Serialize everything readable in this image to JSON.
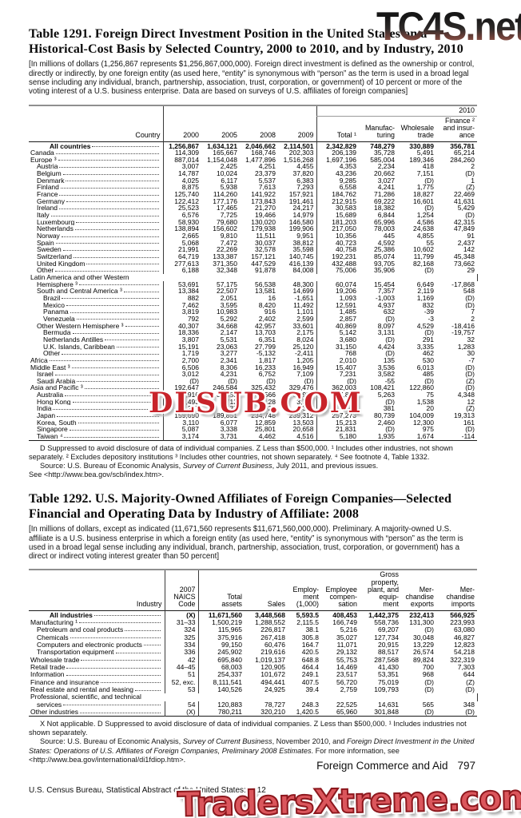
{
  "colors": {
    "watermark_red": "#c8232a",
    "rule_gray": "#8f8f8f",
    "text": "#000000"
  },
  "watermarks": {
    "top": "TC4S.net",
    "middle": "DLSUB.COM",
    "bottom": "TradersXtreme.com"
  },
  "footer": {
    "running_head": "Foreign Commerce and Aid",
    "page_number": "797",
    "source_line": "U.S. Census Bureau, Statistical Abstract of the United States: 2012"
  },
  "table1291": {
    "title": "Table 1291. Foreign Direct Investment Position in the United States on a Historical-Cost Basis by Selected Country, 2000 to 2010, and by Industry, 2010",
    "note": "[In millions of dollars (1,256,867 represents $1,256,867,000,000). Foreign direct investment is defined as the ownership or control, directly or indirectly, by one foreign entity (as used here, “entity” is synonymous with “person” as the term is used in a broad legal sense including any individual, branch, partnership, association, trust, corporation, or government) of 10 percent or more of the voting interest of a U.S. business enterprise. Data are based on surveys of U.S. affiliates of foreign companies]",
    "header": {
      "country": "Country",
      "group": "2010",
      "cols": [
        "2000",
        "2005",
        "2008",
        "2009",
        "Total ¹",
        "Manufac-\nturing",
        "Wholesale\ntrade",
        "Finance ²\nand insur-\nance"
      ]
    },
    "cell_classes": [
      "num",
      "num",
      "num",
      "num",
      "num vr",
      "num",
      "num",
      "num"
    ],
    "rows": [
      {
        "label": "All countries",
        "indent": 3,
        "bold": true,
        "cells": [
          "1,256,867",
          "1,634,121",
          "2,046,662",
          "2,114,501",
          "2,342,829",
          "748,279",
          "330,889",
          "356,781"
        ]
      },
      {
        "label": "Canada",
        "indent": 0,
        "cells": [
          "114,309",
          "165,667",
          "168,746",
          "202,303",
          "206,139",
          "35,728",
          "5,491",
          "65,214"
        ]
      },
      {
        "label": "Europe ³",
        "indent": 0,
        "cells": [
          "887,014",
          "1,154,048",
          "1,477,896",
          "1,516,268",
          "1,697,196",
          "585,004",
          "189,346",
          "284,260"
        ]
      },
      {
        "label": "Austria",
        "indent": 1,
        "cells": [
          "3,007",
          "2,425",
          "4,251",
          "4,455",
          "4,353",
          "2,234",
          "418",
          "2"
        ]
      },
      {
        "label": "Belgium",
        "indent": 1,
        "cells": [
          "14,787",
          "10,024",
          "23,379",
          "37,820",
          "43,236",
          "20,662",
          "7,151",
          "(D)"
        ]
      },
      {
        "label": "Denmark",
        "indent": 1,
        "cells": [
          "4,025",
          "6,117",
          "5,537",
          "6,383",
          "9,285",
          "3,027",
          "(D)",
          "1"
        ]
      },
      {
        "label": "Finland",
        "indent": 1,
        "cells": [
          "8,875",
          "5,938",
          "7,613",
          "7,293",
          "6,558",
          "4,241",
          "1,775",
          "(Z)"
        ]
      },
      {
        "label": "France",
        "indent": 1,
        "cells": [
          "125,740",
          "114,260",
          "141,922",
          "157,921",
          "184,762",
          "71,286",
          "18,827",
          "22,469"
        ]
      },
      {
        "label": "Germany",
        "indent": 1,
        "cells": [
          "122,412",
          "177,176",
          "173,843",
          "191,461",
          "212,915",
          "69,222",
          "16,601",
          "41,631"
        ]
      },
      {
        "label": "Ireland",
        "indent": 1,
        "cells": [
          "25,523",
          "17,465",
          "21,270",
          "24,217",
          "30,583",
          "18,382",
          "(D)",
          "5,429"
        ]
      },
      {
        "label": "Italy",
        "indent": 1,
        "cells": [
          "6,576",
          "7,725",
          "19,466",
          "14,979",
          "15,689",
          "6,844",
          "1,254",
          "(D)"
        ]
      },
      {
        "label": "Luxembourg",
        "indent": 1,
        "cells": [
          "58,930",
          "79,680",
          "130,020",
          "146,580",
          "181,203",
          "65,996",
          "4,586",
          "42,315"
        ]
      },
      {
        "label": "Netherlands",
        "indent": 1,
        "cells": [
          "138,894",
          "156,602",
          "179,938",
          "199,906",
          "217,050",
          "78,003",
          "24,638",
          "47,849"
        ]
      },
      {
        "label": "Norway",
        "indent": 1,
        "cells": [
          "2,665",
          "9,810",
          "11,511",
          "9,951",
          "10,356",
          "445",
          "4,855",
          "91"
        ]
      },
      {
        "label": "Spain",
        "indent": 1,
        "cells": [
          "5,068",
          "7,472",
          "30,037",
          "38,812",
          "40,723",
          "4,592",
          "55",
          "2,437"
        ]
      },
      {
        "label": "Sweden",
        "indent": 1,
        "cells": [
          "21,991",
          "22,269",
          "32,578",
          "35,598",
          "40,758",
          "25,386",
          "10,602",
          "142"
        ]
      },
      {
        "label": "Switzerland",
        "indent": 1,
        "cells": [
          "64,719",
          "133,387",
          "157,121",
          "140,745",
          "192,231",
          "85,074",
          "11,799",
          "45,348"
        ]
      },
      {
        "label": "United Kingdom",
        "indent": 1,
        "cells": [
          "277,613",
          "371,350",
          "447,529",
          "416,139",
          "432,488",
          "93,705",
          "82,168",
          "73,662"
        ]
      },
      {
        "label": "Other",
        "indent": 1,
        "cells": [
          "6,188",
          "32,348",
          "91,878",
          "84,008",
          "75,006",
          "35,906",
          "(D)",
          "29"
        ]
      },
      {
        "label": "Latin America and other Western",
        "indent": 0,
        "cells": []
      },
      {
        "label": "Hemisphere ³",
        "indent": 1,
        "cells": [
          "53,691",
          "57,175",
          "56,538",
          "48,300",
          "60,074",
          "15,454",
          "6,649",
          "-17,868"
        ]
      },
      {
        "label": "South and Central America ³",
        "indent": 1,
        "cells": [
          "13,384",
          "22,507",
          "13,581",
          "14,699",
          "19,206",
          "7,357",
          "2,119",
          "548"
        ]
      },
      {
        "label": "Brazil",
        "indent": 2,
        "cells": [
          "882",
          "2,051",
          "16",
          "-1,651",
          "1,093",
          "-1,003",
          "1,169",
          "(D)"
        ]
      },
      {
        "label": "Mexico",
        "indent": 2,
        "cells": [
          "7,462",
          "3,595",
          "8,420",
          "11,492",
          "12,591",
          "4,937",
          "832",
          "(D)"
        ]
      },
      {
        "label": "Panama",
        "indent": 2,
        "cells": [
          "3,819",
          "10,983",
          "916",
          "1,101",
          "1,485",
          "632",
          "-39",
          "7"
        ]
      },
      {
        "label": "Venezuela",
        "indent": 2,
        "cells": [
          "792",
          "5,292",
          "2,402",
          "2,599",
          "2,857",
          "(D)",
          "-3",
          "2"
        ]
      },
      {
        "label": "Other Western Hemisphere ³",
        "indent": 1,
        "cells": [
          "40,307",
          "34,668",
          "42,957",
          "33,601",
          "40,869",
          "8,097",
          "4,529",
          "-18,416"
        ]
      },
      {
        "label": "Bermuda",
        "indent": 2,
        "cells": [
          "18,336",
          "2,147",
          "13,703",
          "2,175",
          "5,142",
          "3,131",
          "(D)",
          "-19,757"
        ]
      },
      {
        "label": "Netherlands Antilles",
        "indent": 2,
        "cells": [
          "3,807",
          "5,531",
          "6,351",
          "8,024",
          "3,680",
          "(D)",
          "291",
          "32"
        ]
      },
      {
        "label": "U.K. Islands, Caribbean",
        "indent": 2,
        "cells": [
          "15,191",
          "23,063",
          "27,799",
          "25,120",
          "31,150",
          "4,424",
          "3,335",
          "1,283"
        ]
      },
      {
        "label": "Other",
        "indent": 2,
        "cells": [
          "1,719",
          "3,277",
          "-5,132",
          "-2,411",
          "768",
          "(D)",
          "462",
          "30"
        ]
      },
      {
        "label": "Africa",
        "indent": 0,
        "cells": [
          "2,700",
          "2,341",
          "1,817",
          "1,205",
          "2,010",
          "135",
          "530",
          "-7"
        ]
      },
      {
        "label": "Middle East ³",
        "indent": 0,
        "cells": [
          "6,506",
          "8,306",
          "16,233",
          "16,949",
          "15,407",
          "3,536",
          "6,013",
          "(D)"
        ]
      },
      {
        "label": "Israel",
        "indent": 1,
        "cells": [
          "3,012",
          "4,231",
          "6,752",
          "7,109",
          "7,231",
          "3,582",
          "485",
          "(D)"
        ]
      },
      {
        "label": "Saudi Arabia",
        "indent": 1,
        "cells": [
          "(D)",
          "(D)",
          "(D)",
          "(D)",
          "(D)",
          "-55",
          "(D)",
          "(Z)"
        ]
      },
      {
        "label": "Asia and Pacific ³",
        "indent": 0,
        "cells": [
          "192,647",
          "246,584",
          "325,432",
          "329,476",
          "362,003",
          "108,421",
          "122,860",
          "(D)"
        ]
      },
      {
        "label": "Australia",
        "indent": 1,
        "cells": [
          "20,916",
          "34,355",
          "44,566",
          "50,954",
          "47,825",
          "5,263",
          "75",
          "4,348"
        ]
      },
      {
        "label": "Hong Kong",
        "indent": 1,
        "cells": [
          "1,493",
          "1,713",
          "3,128",
          "3,714",
          "4,074",
          "(D)",
          "1,538",
          "12"
        ]
      },
      {
        "label": "India",
        "indent": 1,
        "cells": [
          "227",
          "1,437",
          "2,629",
          "2,372",
          "3,344",
          "381",
          "20",
          "(Z)"
        ]
      },
      {
        "label": "Japan",
        "indent": 1,
        "cells": [
          "159,690",
          "189,851",
          "234,748",
          "239,312",
          "257,273",
          "80,739",
          "104,009",
          "19,313"
        ]
      },
      {
        "label": "Korea, South",
        "indent": 1,
        "cells": [
          "3,110",
          "6,077",
          "12,859",
          "13,503",
          "15,213",
          "2,460",
          "12,300",
          "161"
        ]
      },
      {
        "label": "Singapore",
        "indent": 1,
        "cells": [
          "5,087",
          "3,338",
          "25,801",
          "20,658",
          "21,831",
          "(D)",
          "975",
          "(D)"
        ]
      },
      {
        "label": "Taiwan ⁴",
        "indent": 1,
        "cells": [
          "3,174",
          "3,731",
          "4,462",
          "4,516",
          "5,180",
          "1,935",
          "1,674",
          "-114"
        ]
      }
    ],
    "footnote": "D Suppressed to avoid disclosure of data of individual companies. Z Less than $500,000. ¹ Includes other industries, not shown separately. ² Excludes depository institutions ³ Includes other countries, not shown separately. ⁴ See footnote 4, Table 1332.",
    "source_segments": [
      {
        "t": "Source: U.S. Bureau of Economic Analysis, ",
        "i": false
      },
      {
        "t": "Survey of Current Business",
        "i": true
      },
      {
        "t": ", July 2011, and previous issues.",
        "i": false
      }
    ],
    "see_line": "See <http://www.bea.gov/scb/index.htm>."
  },
  "table1292": {
    "title": "Table 1292. U.S. Majority-Owned Affiliates of Foreign Companies—Selected Financial and Operating Data by Industry of Affiliate: 2008",
    "note": "[In millions of dollars, except as indicated (11,671,560 represents $11,671,560,000,000). Preliminary. A majority-owned U.S. affiliate is a U.S. business enterprise in which a foreign entity (as used here, “entity” is synonymous with “person” as the term is used in a broad legal sense including any individual, branch, partnership, association, trust, corporation, or government) has a direct or indirect voting interest greater than 50 percent]",
    "header": {
      "cols": [
        "Industry",
        "2007\nNAICS\nCode",
        "Total\nassets",
        "Sales",
        "Employ-\nment\n(1,000)",
        "Employee\ncompen-\nsation",
        "Gross\nproperty,\nplant, and\nequip-\nment",
        "Mer-\nchandise\nexports",
        "Mer-\nchandise\nimports"
      ]
    },
    "cell_classes": [
      "naics",
      "num",
      "num",
      "num",
      "num",
      "num",
      "num",
      "num"
    ],
    "rows": [
      {
        "label": "All industries",
        "indent": 3,
        "bold": true,
        "cells": [
          "(X)",
          "11,671,560",
          "3,448,568",
          "5,593.5",
          "408,453",
          "1,442,375",
          "232,413",
          "566,925"
        ]
      },
      {
        "label": "Manufacturing ¹",
        "indent": 0,
        "cells": [
          "31–33",
          "1,500,219",
          "1,288,552",
          "2,115.5",
          "166,749",
          "558,736",
          "131,300",
          "223,993"
        ]
      },
      {
        "label": "Petroleum and coal products",
        "indent": 1,
        "cells": [
          "324",
          "115,965",
          "226,817",
          "38.1",
          "5,216",
          "69,207",
          "(D)",
          "63,080"
        ]
      },
      {
        "label": "Chemicals",
        "indent": 1,
        "cells": [
          "325",
          "375,916",
          "267,418",
          "305.8",
          "35,027",
          "127,734",
          "30,048",
          "46,827"
        ]
      },
      {
        "label": "Computers and electronic products",
        "indent": 1,
        "cells": [
          "334",
          "99,150",
          "60,476",
          "164.7",
          "11,071",
          "20,915",
          "13,229",
          "12,823"
        ]
      },
      {
        "label": "Transportation equipment",
        "indent": 1,
        "cells": [
          "336",
          "245,902",
          "219,616",
          "420.5",
          "29,132",
          "88,517",
          "26,574",
          "54,218"
        ]
      },
      {
        "label": "Wholesale trade",
        "indent": 0,
        "cells": [
          "42",
          "695,840",
          "1,019,137",
          "648.8",
          "55,753",
          "287,568",
          "89,824",
          "322,319"
        ]
      },
      {
        "label": "Retail trade",
        "indent": 0,
        "cells": [
          "44–45",
          "68,003",
          "120,905",
          "464.4",
          "14,469",
          "41,430",
          "700",
          "7,303"
        ]
      },
      {
        "label": "Information",
        "indent": 0,
        "cells": [
          "51",
          "254,337",
          "101,672",
          "249.1",
          "23,517",
          "53,351",
          "968",
          "644"
        ]
      },
      {
        "label": "Finance and insurance",
        "indent": 0,
        "cells": [
          "52, exc.",
          "8,111,541",
          "494,441",
          "407.5",
          "56,720",
          "75,019",
          "(D)",
          "(Z)"
        ]
      },
      {
        "label": "Real estate and rental and leasing",
        "indent": 0,
        "cells": [
          "53",
          "140,526",
          "24,925",
          "39.4",
          "2,759",
          "109,793",
          "(D)",
          "(D)"
        ]
      },
      {
        "label": "Professional, scientific, and technical",
        "indent": 0,
        "cells": []
      },
      {
        "label": "services",
        "indent": 1,
        "cells": [
          "54",
          "120,883",
          "78,727",
          "248.3",
          "22,525",
          "14,631",
          "565",
          "348"
        ]
      },
      {
        "label": "Other industries",
        "indent": 0,
        "cells": [
          "(X)",
          "780,211",
          "320,210",
          "1,420.5",
          "65,960",
          "301,848",
          "(D)",
          "(D)"
        ]
      }
    ],
    "footnote": "X Not applicable. D Suppressed to avoid disclosure of data of individual companies. Z Less than $500,000. ¹ Includes industries not shown separately.",
    "source_segments": [
      {
        "t": "Source: U.S. Bureau of Economic Analysis, ",
        "i": false
      },
      {
        "t": "Survey of Current Business",
        "i": true
      },
      {
        "t": ", November 2010, and ",
        "i": false
      },
      {
        "t": "Foreign Direct Investment in the United States: Operations of U.S. Affiliates of Foreign Companies, Preliminary 2008 Estimates",
        "i": true
      },
      {
        "t": ". For more information, see <http://www.bea.gov/international/di1fdiop.htm>.",
        "i": false
      }
    ]
  }
}
